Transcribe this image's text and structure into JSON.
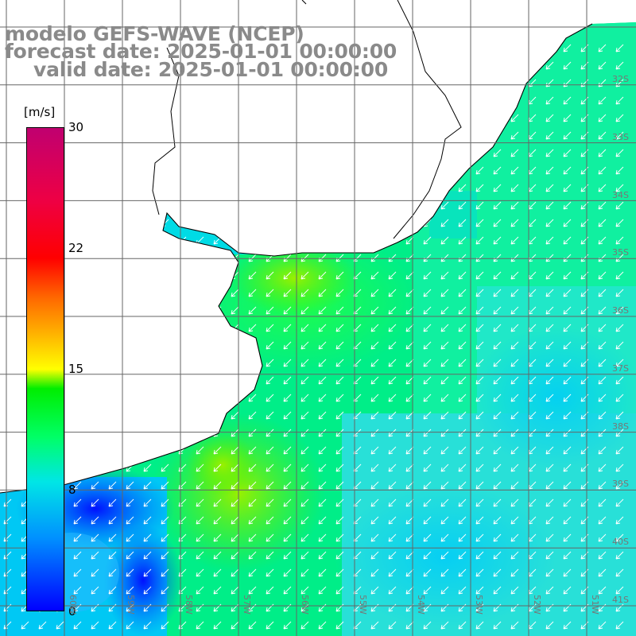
{
  "titles": {
    "model": "modelo GEFS-WAVE (NCEP)",
    "forecast": "forecast date: 2025-01-01 00:00:00",
    "valid": "valid date: 2025-01-01 00:00:00"
  },
  "colorbar": {
    "units": "[m/s]",
    "ticks": [
      "0",
      "8",
      "15",
      "22",
      "30"
    ],
    "range": [
      0,
      30
    ]
  },
  "lat_labels": [
    "32S",
    "33S",
    "34S",
    "35S",
    "36S",
    "37S",
    "38S",
    "39S",
    "40S",
    "41S"
  ],
  "lon_labels": [
    "60W",
    "59W",
    "58W",
    "57W",
    "56W",
    "55W",
    "54W",
    "53W",
    "52W",
    "51W"
  ],
  "colors": {
    "land": "#ffffff",
    "coast": "#000000",
    "grid": "#666666",
    "arrows": "#ffffff"
  }
}
